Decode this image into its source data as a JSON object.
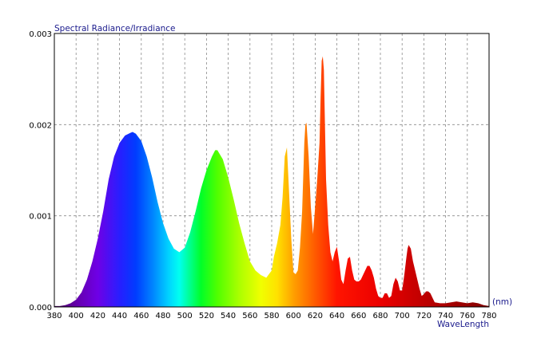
{
  "chart_data": {
    "type": "area",
    "ylabel": "Spectral Radiance/Irradiance",
    "xlabel": "WaveLength",
    "xunit": "(nm)",
    "xlim": [
      380,
      780
    ],
    "ylim": [
      0,
      0.003
    ],
    "x_ticks": [
      "380",
      "400",
      "420",
      "440",
      "460",
      "480",
      "500",
      "520",
      "540",
      "560",
      "580",
      "600",
      "620",
      "640",
      "660",
      "680",
      "700",
      "720",
      "740",
      "760",
      "780"
    ],
    "y_ticks": [
      "0.000",
      "0.001",
      "0.002",
      "0.003"
    ],
    "grid": true,
    "fill": "spectral rainbow gradient by wavelength",
    "series": [
      {
        "x": [
          380,
          385,
          390,
          395,
          400,
          405,
          410,
          415,
          420,
          425,
          430,
          435,
          440,
          445,
          450,
          452,
          455,
          460,
          465,
          470,
          475,
          480,
          485,
          490,
          495,
          500,
          505,
          510,
          515,
          520,
          525,
          528,
          530,
          535,
          540,
          545,
          550,
          555,
          560,
          565,
          570,
          575,
          580,
          582,
          585,
          588,
          590,
          592,
          594,
          596,
          598,
          600,
          602,
          604,
          606,
          608,
          610,
          611,
          612,
          614,
          616,
          618,
          620,
          622,
          624,
          625,
          626,
          627,
          628,
          629,
          630,
          632,
          634,
          636,
          638,
          640,
          642,
          644,
          646,
          648,
          650,
          652,
          654,
          656,
          658,
          660,
          662,
          664,
          666,
          668,
          670,
          672,
          674,
          676,
          678,
          680,
          682,
          684,
          686,
          688,
          690,
          692,
          694,
          696,
          698,
          700,
          702,
          704,
          705,
          706,
          708,
          710,
          712,
          714,
          716,
          718,
          720,
          722,
          724,
          726,
          728,
          730,
          735,
          740,
          745,
          750,
          755,
          760,
          765,
          770,
          775,
          780
        ],
        "y": [
          1e-05,
          1e-05,
          2e-05,
          4e-05,
          8e-05,
          0.00016,
          0.0003,
          0.0005,
          0.00075,
          0.00105,
          0.0014,
          0.00165,
          0.0018,
          0.00188,
          0.00191,
          0.00192,
          0.0019,
          0.00182,
          0.00165,
          0.00142,
          0.00115,
          0.00092,
          0.00075,
          0.00064,
          0.0006,
          0.00065,
          0.00082,
          0.00105,
          0.0013,
          0.0015,
          0.00165,
          0.00172,
          0.00172,
          0.00162,
          0.00142,
          0.00118,
          0.00092,
          0.0007,
          0.0005,
          0.0004,
          0.00035,
          0.00032,
          0.0004,
          0.00055,
          0.0007,
          0.0009,
          0.0012,
          0.00165,
          0.00175,
          0.00125,
          0.00075,
          0.00038,
          0.00036,
          0.0004,
          0.00065,
          0.00105,
          0.0018,
          0.002,
          0.00202,
          0.00165,
          0.0011,
          0.0008,
          0.0011,
          0.00142,
          0.0018,
          0.0023,
          0.0027,
          0.00275,
          0.0026,
          0.002,
          0.0014,
          0.0009,
          0.0006,
          0.0005,
          0.0006,
          0.00066,
          0.0005,
          0.0003,
          0.00025,
          0.0004,
          0.00053,
          0.00055,
          0.0004,
          0.0003,
          0.00028,
          0.00028,
          0.0003,
          0.00035,
          0.0004,
          0.00045,
          0.00045,
          0.0004,
          0.00032,
          0.0002,
          0.00012,
          0.0001,
          0.0001,
          0.00015,
          0.00015,
          0.0001,
          0.00012,
          0.00025,
          0.00032,
          0.00028,
          0.00018,
          0.00018,
          0.00035,
          0.00055,
          0.00064,
          0.00068,
          0.00064,
          0.0005,
          0.0004,
          0.0003,
          0.0002,
          0.00012,
          0.00014,
          0.00017,
          0.00017,
          0.00015,
          0.0001,
          5e-05,
          4e-05,
          4e-05,
          5e-05,
          6e-05,
          5e-05,
          4e-05,
          5e-05,
          4e-05,
          2e-05,
          1e-05
        ]
      }
    ]
  }
}
